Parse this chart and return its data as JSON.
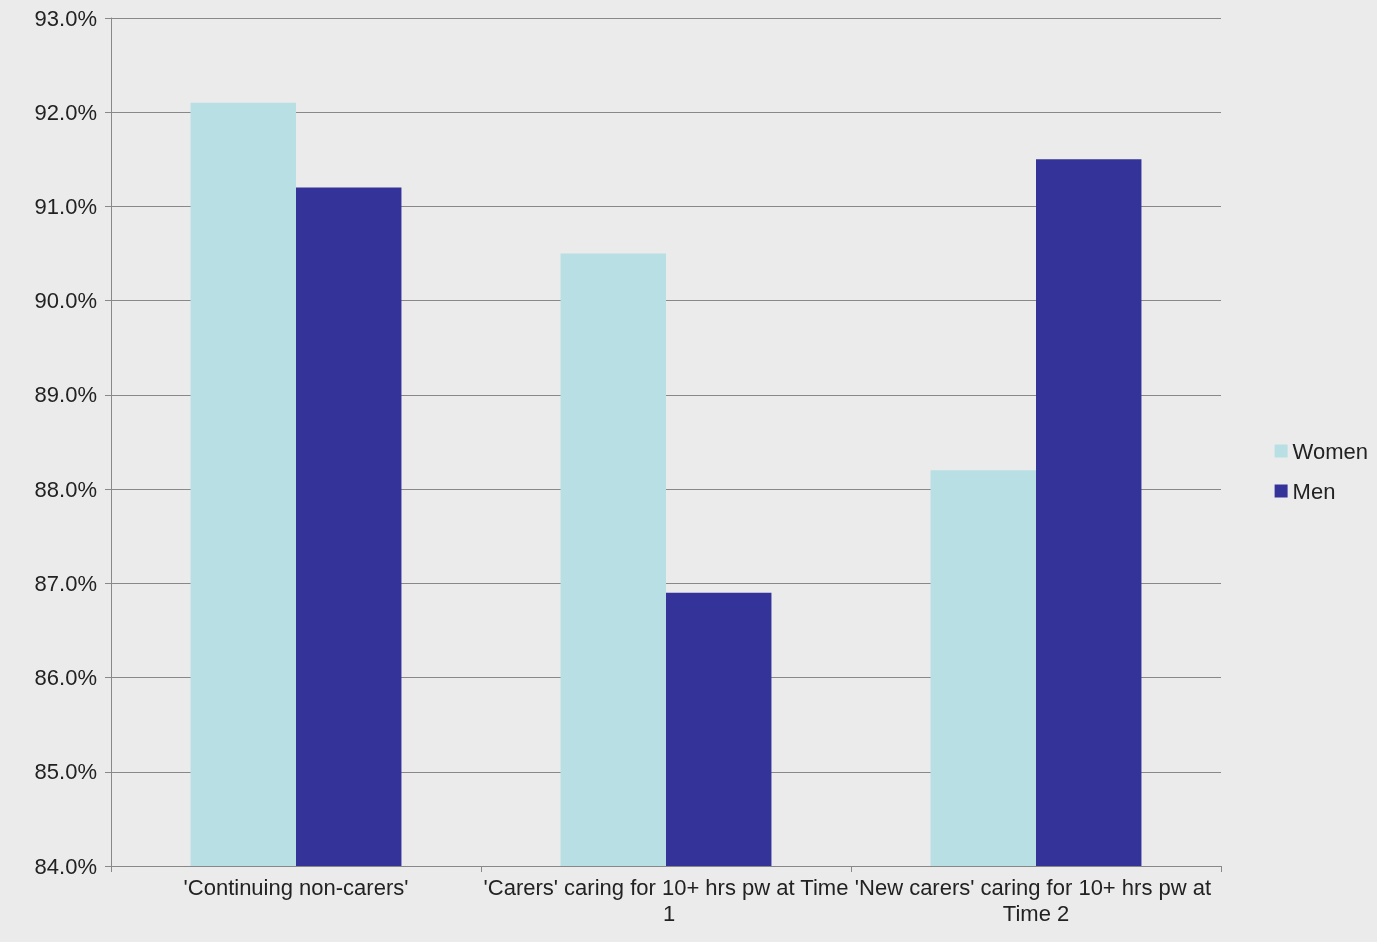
{
  "chart_data": {
    "type": "bar",
    "categories": [
      "'Continuing non-carers'",
      "'Carers' caring for 10+ hrs pw at Time 1",
      "'New carers' caring for 10+ hrs pw at Time 2"
    ],
    "series": [
      {
        "name": "Women",
        "color": "#b8dfe3",
        "values": [
          92.1,
          90.5,
          88.2
        ]
      },
      {
        "name": "Men",
        "color": "#333399",
        "values": [
          91.2,
          86.9,
          91.5
        ]
      }
    ],
    "ylim": [
      84,
      93
    ],
    "yticks": [
      {
        "value": 84,
        "label": "84.0%"
      },
      {
        "value": 85,
        "label": "85.0%"
      },
      {
        "value": 86,
        "label": "86.0%"
      },
      {
        "value": 87,
        "label": "87.0%"
      },
      {
        "value": 88,
        "label": "88.0%"
      },
      {
        "value": 89,
        "label": "89.0%"
      },
      {
        "value": 90,
        "label": "90.0%"
      },
      {
        "value": 91,
        "label": "91.0%"
      },
      {
        "value": 92,
        "label": "92.0%"
      },
      {
        "value": 93,
        "label": "93.0%"
      }
    ],
    "grid": "y",
    "legend": "right"
  }
}
